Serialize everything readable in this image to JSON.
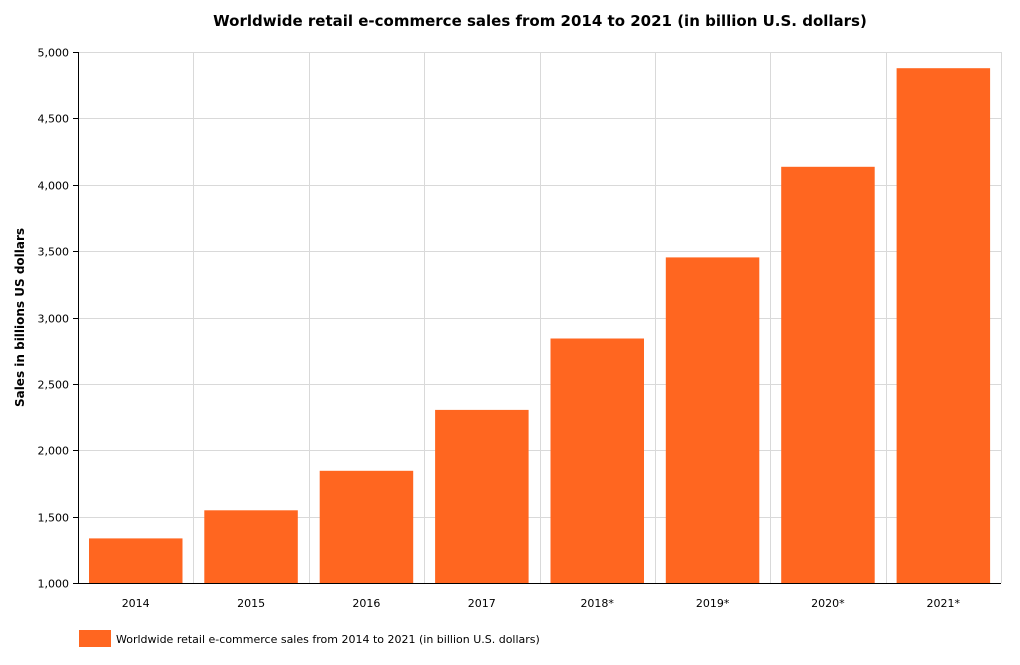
{
  "chart_data": {
    "type": "bar",
    "title": "Worldwide retail e-commerce sales from 2014 to 2021 (in billion U.S. dollars)",
    "xlabel": "",
    "ylabel": "Sales in billions US dollars",
    "categories": [
      "2014",
      "2015",
      "2016",
      "2017",
      "2018*",
      "2019*",
      "2020*",
      "2021*"
    ],
    "series": [
      {
        "name": "Worldwide retail e-commerce sales from 2014 to 2021 (in billion U.S. dollars)",
        "values": [
          1336,
          1548,
          1845,
          2304,
          2842,
          3453,
          4135,
          4878
        ],
        "color": "#ff6620"
      }
    ],
    "ylim": [
      1000,
      5000
    ],
    "yticks": [
      1000,
      1500,
      2000,
      2500,
      3000,
      3500,
      4000,
      4500,
      5000
    ],
    "ytick_labels": [
      "1,000",
      "1,500",
      "2,000",
      "2,500",
      "3,000",
      "3,500",
      "4,000",
      "4,500",
      "5,000"
    ],
    "grid": true,
    "legend_position": "bottom-left"
  }
}
